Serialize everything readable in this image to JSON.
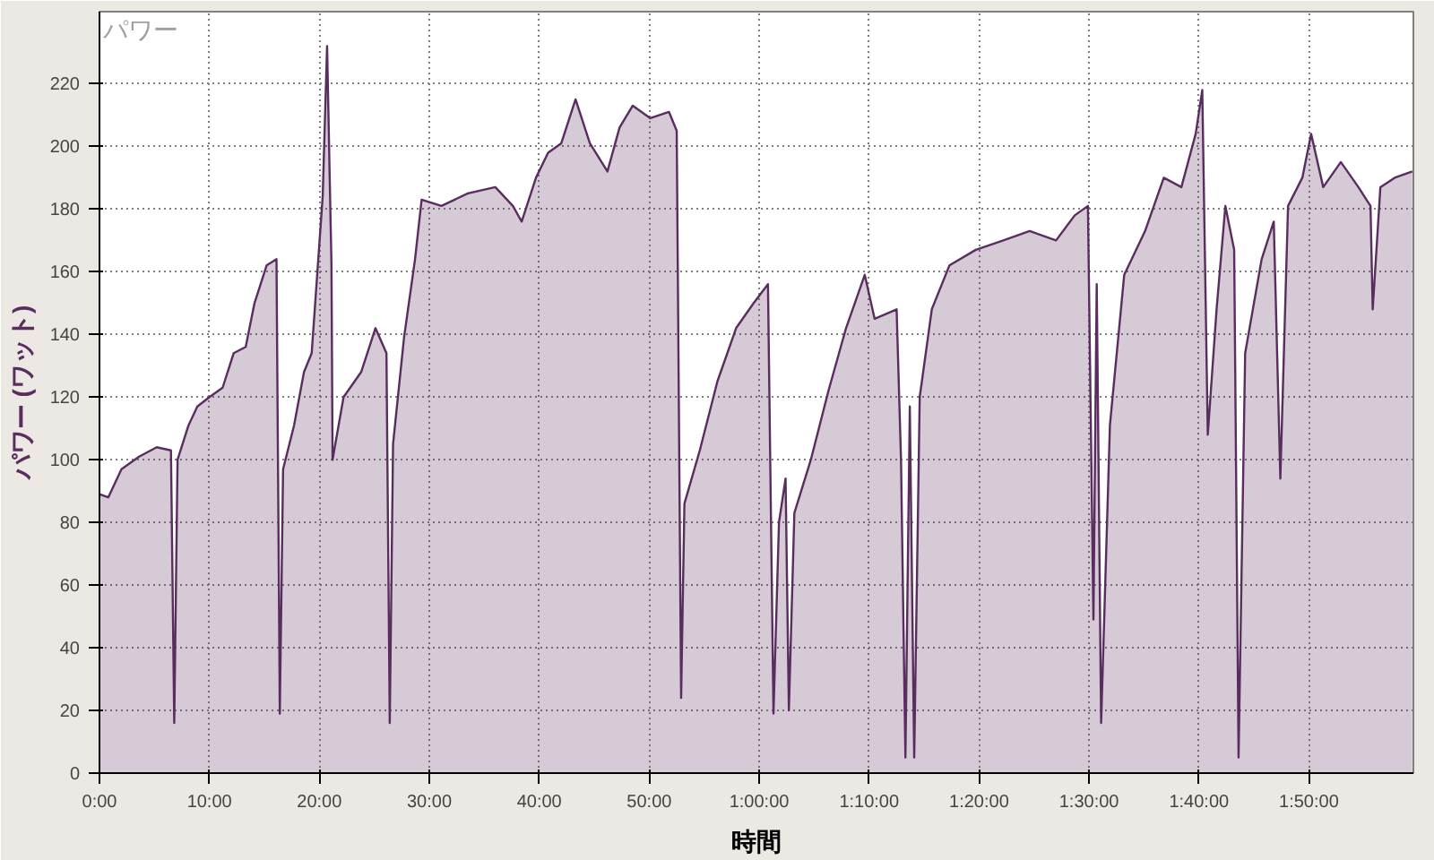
{
  "chart_data": {
    "type": "area",
    "title": "パワー",
    "xlabel": "時間",
    "ylabel": "パワー (ワット)",
    "grid": true,
    "line_style": "solid",
    "xlim": [
      0,
      119.5
    ],
    "ylim": [
      0,
      243
    ],
    "xticks": [
      {
        "value": 0,
        "label": "0:00"
      },
      {
        "value": 10,
        "label": "10:00"
      },
      {
        "value": 20,
        "label": "20:00"
      },
      {
        "value": 30,
        "label": "30:00"
      },
      {
        "value": 40,
        "label": "40:00"
      },
      {
        "value": 50,
        "label": "50:00"
      },
      {
        "value": 60,
        "label": "1:00:00"
      },
      {
        "value": 70,
        "label": "1:10:00"
      },
      {
        "value": 80,
        "label": "1:20:00"
      },
      {
        "value": 90,
        "label": "1:30:00"
      },
      {
        "value": 100,
        "label": "1:40:00"
      },
      {
        "value": 110,
        "label": "1:50:00"
      }
    ],
    "yticks": [
      0,
      20,
      40,
      60,
      80,
      100,
      120,
      140,
      160,
      180,
      200,
      220
    ],
    "series": [
      {
        "color": "#5a2d5f",
        "x": [
          0,
          0.8,
          2,
          3.6,
          5.2,
          6.5,
          6.8,
          7.1,
          8.1,
          8.9,
          10,
          11.2,
          12.2,
          13.3,
          14.1,
          15.2,
          16.1,
          16.4,
          16.7,
          17.7,
          18.6,
          19.3,
          20.3,
          20.7,
          21.1,
          21.2,
          22.2,
          23.8,
          25.1,
          26.1,
          26.4,
          26.7,
          27.7,
          28.7,
          29.3,
          31.1,
          33.5,
          36,
          37.6,
          38.4,
          39.7,
          40.8,
          42,
          43.3,
          44.6,
          46.2,
          47.3,
          48.5,
          50.1,
          51.8,
          52.5,
          52.9,
          53.2,
          54.6,
          56.2,
          57.9,
          59.5,
          60.8,
          61.3,
          61.8,
          62.4,
          62.7,
          63.2,
          64.7,
          66.3,
          67.9,
          69.6,
          70.5,
          72.5,
          72.9,
          73.3,
          73.7,
          74.1,
          74.6,
          75.7,
          77.3,
          79.7,
          82.2,
          84.6,
          87,
          88.7,
          89.9,
          90.4,
          90.7,
          91.1,
          91.9,
          93.2,
          95.1,
          96.8,
          98.4,
          99.7,
          100.3,
          100.8,
          101.6,
          102.4,
          103.2,
          103.6,
          104.2,
          105.7,
          106.8,
          107.4,
          108.1,
          109.4,
          110.2,
          111.3,
          112.9,
          114.5,
          115.6,
          115.8,
          116.5,
          117.8,
          119.4
        ],
        "values": [
          89,
          88,
          97,
          101,
          104,
          103,
          16,
          100,
          111,
          117,
          120,
          123,
          134,
          136,
          150,
          162,
          164,
          19,
          97,
          111,
          128,
          134,
          184,
          232,
          162,
          100,
          120,
          128,
          142,
          134,
          16,
          105,
          139,
          164,
          183,
          181,
          185,
          187,
          181,
          176,
          190,
          198,
          201,
          215,
          201,
          192,
          206,
          213,
          209,
          211,
          205,
          24,
          86,
          103,
          125,
          142,
          150,
          156,
          19,
          80,
          94,
          20,
          83,
          100,
          122,
          142,
          159,
          145,
          148,
          100,
          5,
          117,
          5,
          120,
          148,
          162,
          167,
          170,
          173,
          170,
          178,
          181,
          49,
          156,
          16,
          111,
          159,
          173,
          190,
          187,
          204,
          218,
          108,
          148,
          181,
          167,
          5,
          134,
          164,
          176,
          94,
          181,
          190,
          204,
          187,
          195,
          187,
          181,
          148,
          187,
          190,
          192
        ]
      }
    ]
  }
}
